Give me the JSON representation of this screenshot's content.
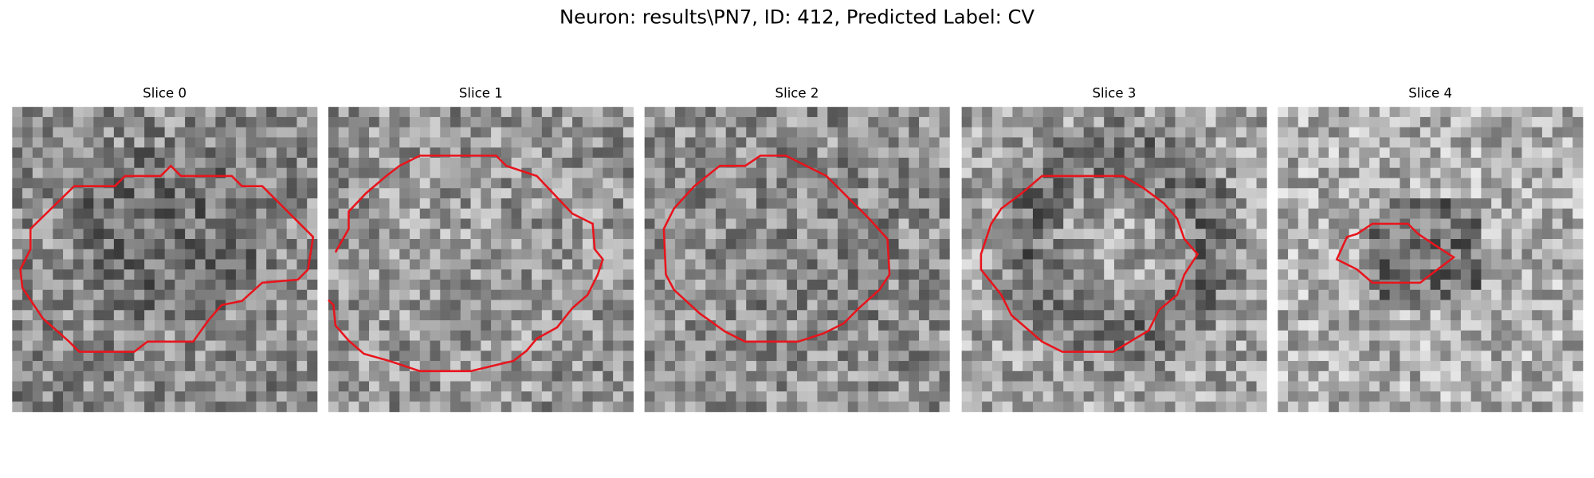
{
  "title": "Neuron: results\\PN7, ID: 412, Predicted Label: CV",
  "panels": [
    {
      "title": "Slice 0"
    },
    {
      "title": "Slice 1"
    },
    {
      "title": "Slice 2"
    },
    {
      "title": "Slice 3"
    },
    {
      "title": "Slice 4"
    }
  ]
}
